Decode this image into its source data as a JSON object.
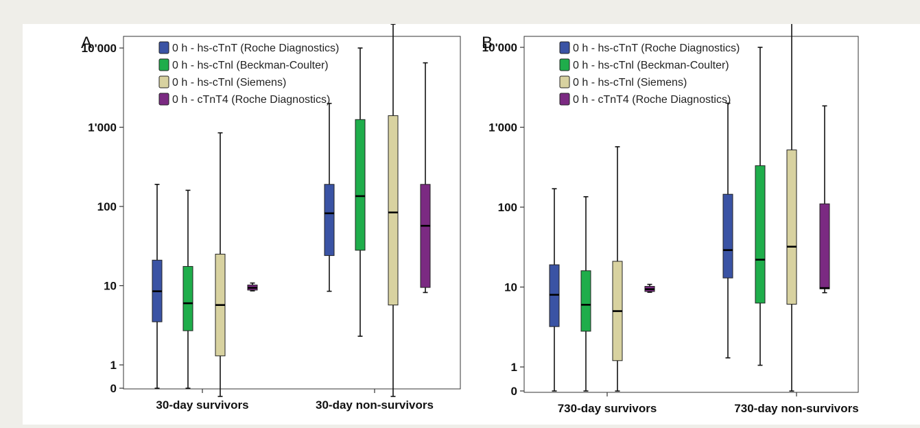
{
  "chart_data": [
    {
      "panel_label": "A",
      "type": "box",
      "scale": "log",
      "y_ticks": [
        {
          "value": 0,
          "label": "0"
        },
        {
          "value": 1,
          "label": "1"
        },
        {
          "value": 10,
          "label": "10"
        },
        {
          "value": 100,
          "label": "100"
        },
        {
          "value": 1000,
          "label": "1'000"
        },
        {
          "value": 10000,
          "label": "10'000"
        }
      ],
      "categories": [
        "30-day survivors",
        "30-day non-survivors"
      ],
      "legend": [
        {
          "label": "0 h - hs-cTnT (Roche Diagnostics)",
          "color": "#3a53a4"
        },
        {
          "label": "0 h - hs-cTnl (Beckman-Coulter)",
          "color": "#1fad4b"
        },
        {
          "label": "0 h - hs-cTnl (Siemens)",
          "color": "#d8d2a0"
        },
        {
          "label": "0 h - cTnT4 (Roche Diagnostics)",
          "color": "#7b2a82"
        }
      ],
      "series": [
        {
          "boxes": [
            {
              "min": 0,
              "q1": 3.5,
              "median": 8.5,
              "q3": 21,
              "max": 190
            },
            {
              "min": 8.5,
              "q1": 24,
              "median": 82,
              "q3": 190,
              "max": 2000
            }
          ]
        },
        {
          "boxes": [
            {
              "min": 0,
              "q1": 2.7,
              "median": 6,
              "q3": 17.5,
              "max": 160
            },
            {
              "min": 2.3,
              "q1": 28,
              "median": 135,
              "q3": 1250,
              "max": 10000
            }
          ]
        },
        {
          "boxes": [
            {
              "min": 0.4,
              "q1": 1.3,
              "median": 5.7,
              "q3": 25,
              "max": 850
            },
            {
              "min": 0.4,
              "q1": 5.7,
              "median": 84,
              "q3": 1400,
              "max": 20000
            }
          ]
        },
        {
          "boxes": [
            {
              "min": 8.6,
              "q1": 8.8,
              "median": 9.4,
              "q3": 10.2,
              "max": 10.8
            },
            {
              "min": 8.2,
              "q1": 9.5,
              "median": 57,
              "q3": 190,
              "max": 6500
            }
          ]
        }
      ]
    },
    {
      "panel_label": "B",
      "type": "box",
      "scale": "log",
      "y_ticks": [
        {
          "value": 0,
          "label": "0"
        },
        {
          "value": 1,
          "label": "1"
        },
        {
          "value": 10,
          "label": "10"
        },
        {
          "value": 100,
          "label": "100"
        },
        {
          "value": 1000,
          "label": "1'000"
        },
        {
          "value": 10000,
          "label": "10'000"
        }
      ],
      "categories": [
        "730-day survivors",
        "730-day non-survivors"
      ],
      "legend": [
        {
          "label": "0 h - hs-cTnT (Roche Diagnostics)",
          "color": "#3a53a4"
        },
        {
          "label": "0 h - hs-cTnl (Beckman-Coulter)",
          "color": "#1fad4b"
        },
        {
          "label": "0 h - hs-cTnl (Siemens)",
          "color": "#d8d2a0"
        },
        {
          "label": "0 h - cTnT4 (Roche Diagnostics)",
          "color": "#7b2a82"
        }
      ],
      "series": [
        {
          "boxes": [
            {
              "min": 0,
              "q1": 3.2,
              "median": 8,
              "q3": 19,
              "max": 170
            },
            {
              "min": 1.3,
              "q1": 13,
              "median": 29,
              "q3": 145,
              "max": 2000
            }
          ]
        },
        {
          "boxes": [
            {
              "min": 0,
              "q1": 2.8,
              "median": 6,
              "q3": 16,
              "max": 135
            },
            {
              "min": 1.05,
              "q1": 6.3,
              "median": 22,
              "q3": 330,
              "max": 10000
            }
          ]
        },
        {
          "boxes": [
            {
              "min": 0.5,
              "q1": 1.2,
              "median": 5,
              "q3": 21,
              "max": 570
            },
            {
              "min": 0.5,
              "q1": 6.1,
              "median": 32,
              "q3": 520,
              "max": 20000
            }
          ]
        },
        {
          "boxes": [
            {
              "min": 8.6,
              "q1": 8.8,
              "median": 9.4,
              "q3": 10.2,
              "max": 10.8
            },
            {
              "min": 8.5,
              "q1": 9.5,
              "median": 9.7,
              "q3": 110,
              "max": 1850
            }
          ]
        }
      ]
    }
  ]
}
